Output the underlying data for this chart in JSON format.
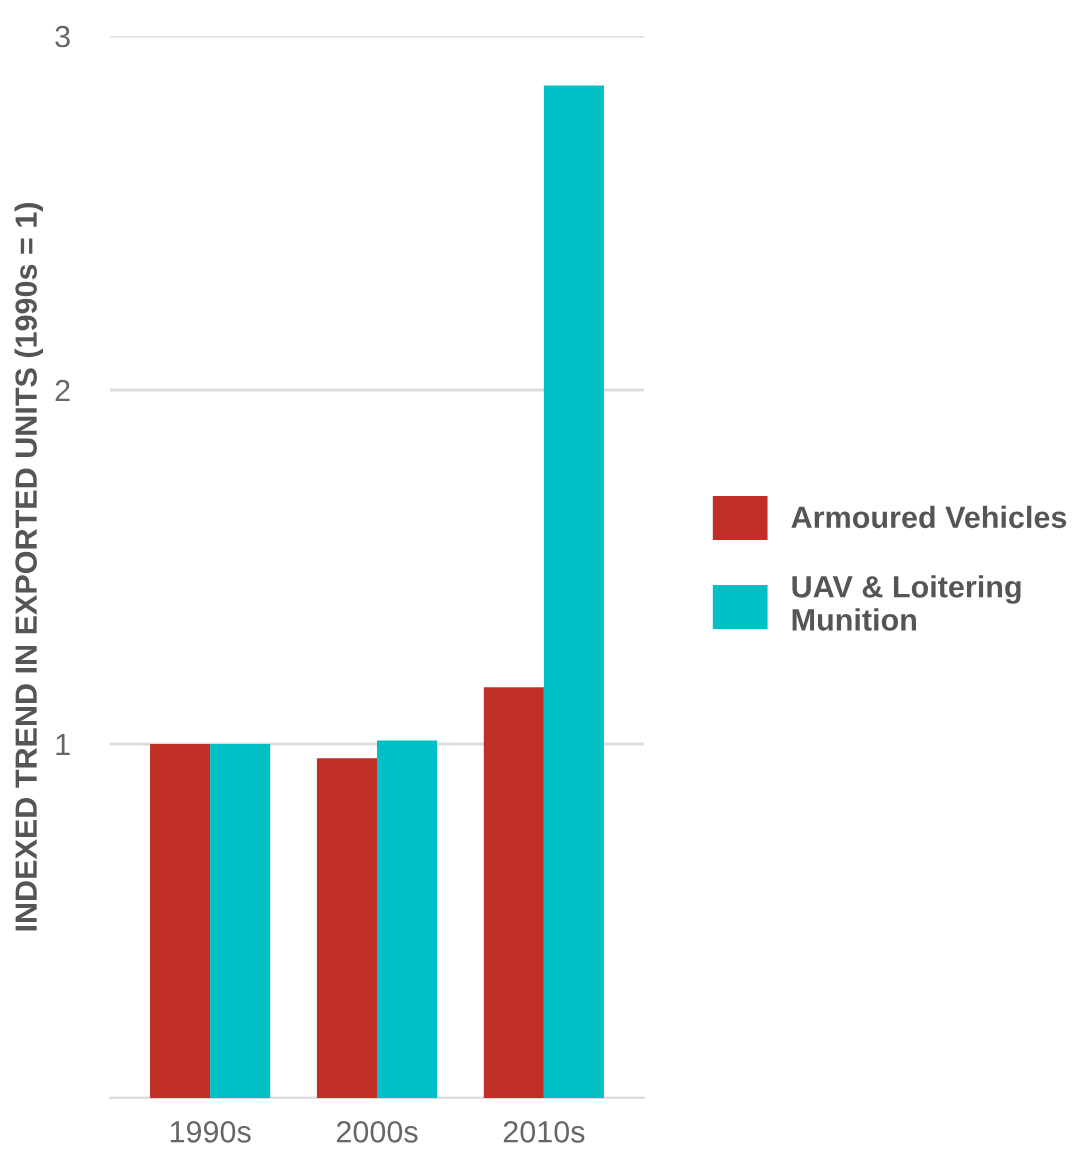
{
  "chart_data": {
    "type": "bar",
    "ylabel": "INDEXED TREND IN EXPORTED UNITS (1990s = 1)",
    "categories": [
      "1990s",
      "2000s",
      "2010s"
    ],
    "series": [
      {
        "name": "Armoured Vehicles",
        "color": "#c02e26",
        "values": [
          1.0,
          0.96,
          1.16
        ]
      },
      {
        "name": "UAV & Loitering Munition",
        "color": "#00bfc5",
        "values": [
          1.0,
          1.01,
          2.86
        ]
      }
    ],
    "ylim": [
      0,
      3
    ],
    "yticks": [
      {
        "value": 0,
        "label": null
      },
      1,
      2,
      3
    ],
    "grid": "y",
    "legend": "right"
  }
}
